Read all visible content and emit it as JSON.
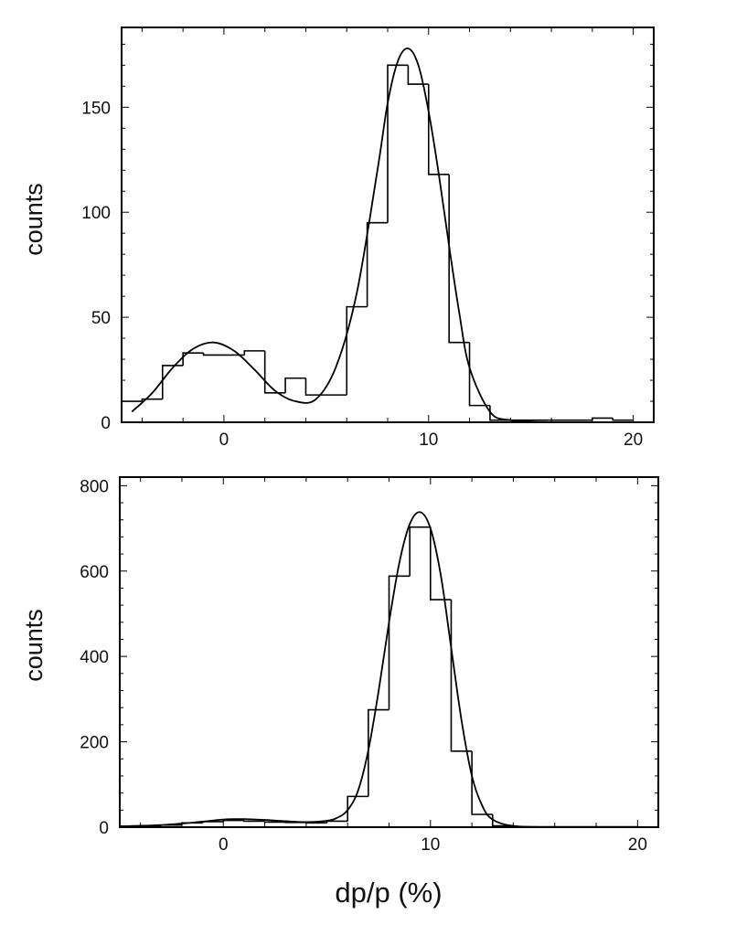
{
  "chart_data": [
    {
      "type": "histogram",
      "ylabel": "counts",
      "xlabel": "",
      "xlim": [
        -5,
        21
      ],
      "ylim": [
        0,
        188
      ],
      "xticks": [
        0,
        10,
        20
      ],
      "yticks": [
        0,
        50,
        100,
        150
      ],
      "grid": false,
      "histogram": {
        "bin_edges": [
          -5,
          -4,
          -3,
          -2,
          -1,
          0,
          1,
          2,
          3,
          4,
          5,
          6,
          7,
          8,
          9,
          10,
          11,
          12,
          13,
          14,
          15,
          16,
          17,
          18,
          19,
          20
        ],
        "counts": [
          10,
          11,
          27,
          33,
          32,
          32,
          34,
          14,
          21,
          13,
          13,
          55,
          95,
          170,
          161,
          118,
          38,
          8,
          1,
          1,
          1,
          1,
          1,
          2,
          1
        ]
      },
      "fit_curve": {
        "x": [
          -4.5,
          -3.5,
          -2.5,
          -1.5,
          -0.5,
          0.5,
          1.5,
          2.5,
          3.5,
          4.5,
          5.5,
          6.5,
          7.5,
          8.0,
          8.5,
          9.0,
          9.5,
          10.0,
          10.5,
          11.0,
          11.5,
          12.0,
          13.0,
          14.0,
          16.0,
          18.0,
          20.3
        ],
        "y": [
          5,
          14,
          26,
          35,
          38,
          34,
          25,
          15,
          10,
          11,
          27,
          62,
          120,
          152,
          172,
          178,
          170,
          148,
          118,
          84,
          52,
          26,
          5,
          1,
          0,
          0,
          0
        ]
      }
    },
    {
      "type": "histogram",
      "ylabel": "counts",
      "xlabel": "dp/p (%)",
      "xlim": [
        -5,
        21
      ],
      "ylim": [
        0,
        820
      ],
      "xticks": [
        0,
        10,
        20
      ],
      "yticks": [
        0,
        200,
        400,
        600,
        800
      ],
      "grid": false,
      "histogram": {
        "bin_edges": [
          -5,
          -4,
          -3,
          -2,
          -1,
          0,
          1,
          2,
          3,
          4,
          5,
          6,
          7,
          8,
          9,
          10,
          11,
          12,
          13,
          14,
          15,
          16,
          17,
          18,
          19,
          20
        ],
        "counts": [
          2,
          3,
          5,
          10,
          13,
          16,
          14,
          12,
          11,
          10,
          14,
          72,
          275,
          588,
          703,
          533,
          178,
          30,
          3,
          1,
          1,
          1,
          1,
          1,
          1
        ]
      },
      "fit_curve": {
        "x": [
          -5,
          -3,
          -1,
          0,
          1,
          2,
          3,
          4,
          5,
          5.5,
          6,
          6.5,
          7,
          7.5,
          8,
          8.5,
          9,
          9.5,
          10,
          10.5,
          11,
          11.5,
          12,
          12.5,
          13,
          14,
          16,
          20.3
        ],
        "y": [
          2,
          5,
          13,
          18,
          19,
          17,
          14,
          12,
          15,
          22,
          40,
          85,
          180,
          320,
          480,
          620,
          710,
          738,
          700,
          590,
          420,
          250,
          120,
          50,
          18,
          3,
          0,
          0
        ]
      }
    }
  ]
}
